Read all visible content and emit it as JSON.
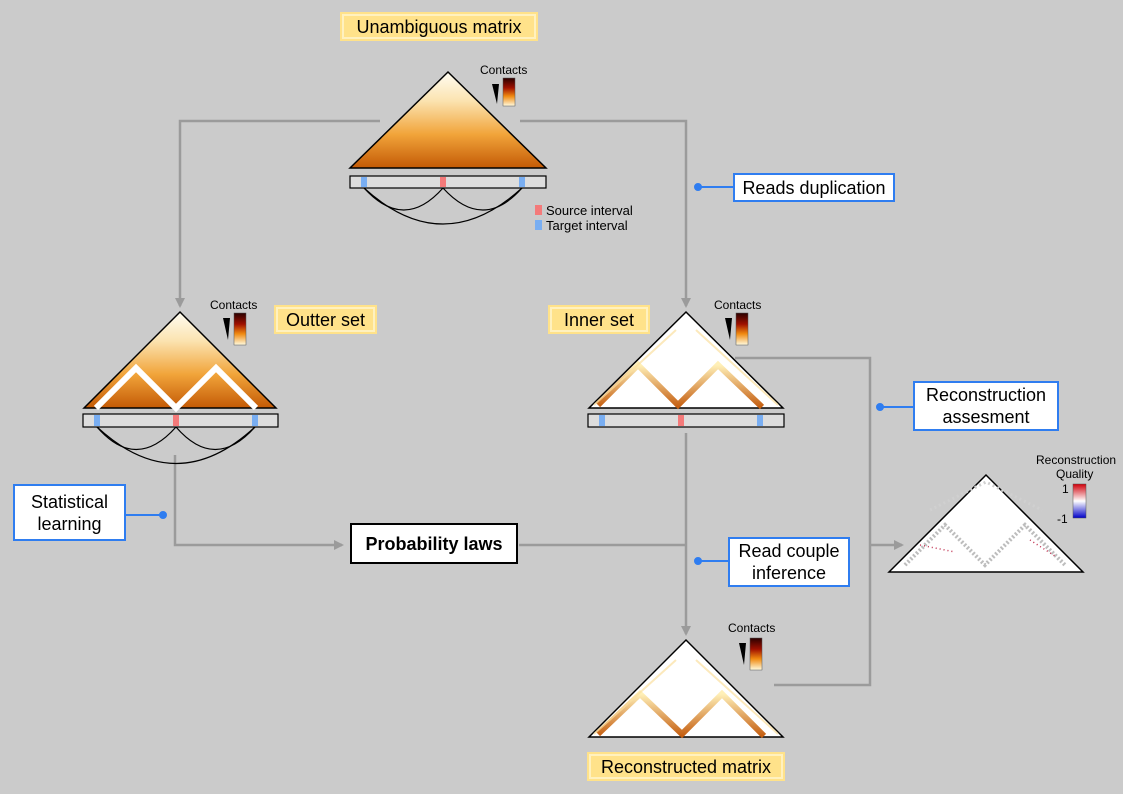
{
  "labels": {
    "unambiguous": "Unambiguous matrix",
    "outter": "Outter set",
    "inner": "Inner set",
    "reconstructed": "Reconstructed matrix",
    "reads_dup": "Reads duplication",
    "recon_assess_1": "Reconstruction",
    "recon_assess_2": "assesment",
    "stat_1": "Statistical",
    "stat_2": "learning",
    "prob": "Probability laws",
    "read_couple_1": "Read couple",
    "read_couple_2": "inference"
  },
  "legend": {
    "source": "Source interval",
    "target": "Target interval"
  },
  "colorbars": {
    "contacts": "Contacts",
    "quality_title_1": "Reconstruction",
    "quality_title_2": "Quality",
    "quality_max": "1",
    "quality_min": "-1"
  },
  "colors": {
    "background": "#cbcbcb",
    "arrow": "#9b9b9b",
    "label_yellow": "#ffe28a",
    "label_blue_border": "#2f7df0",
    "source": "#f47a7a",
    "target": "#79aef2"
  }
}
